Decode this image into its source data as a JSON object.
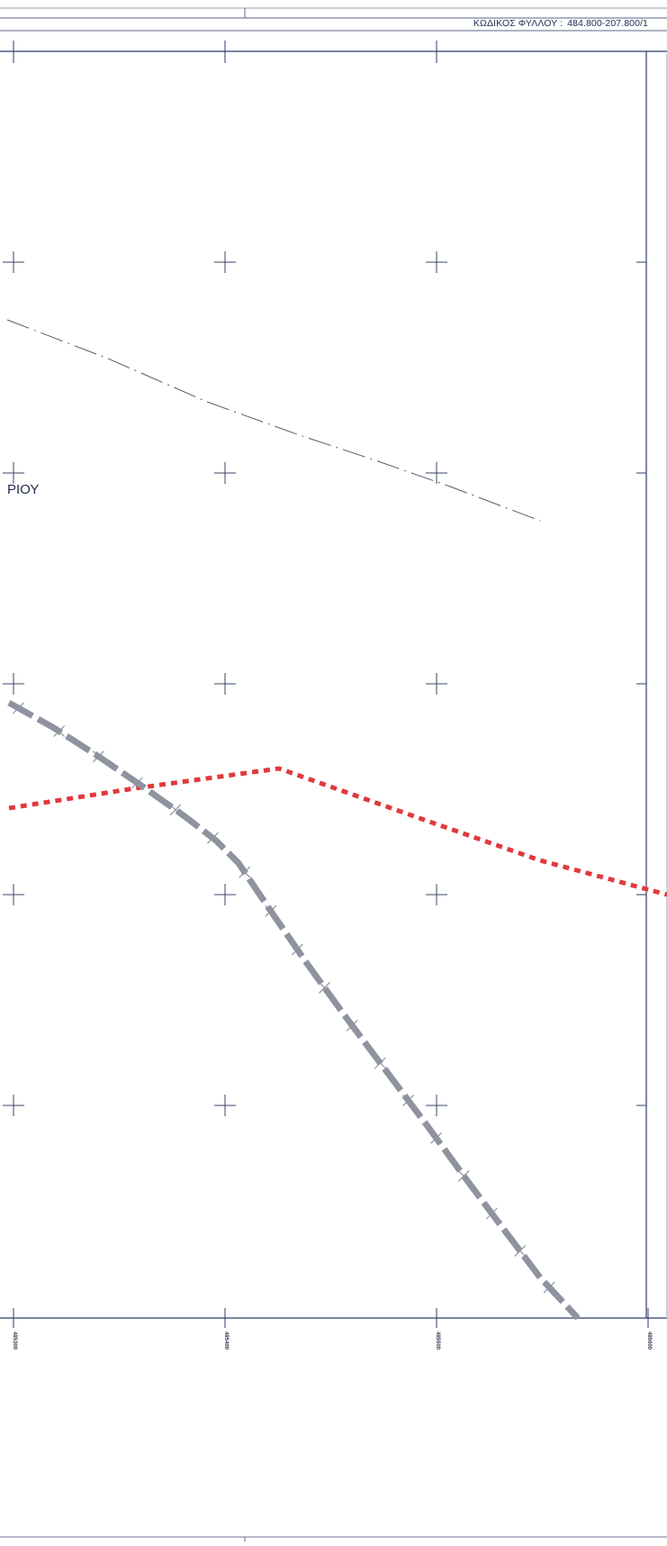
{
  "sheet": {
    "code_label": "ΚΩΔΙΚΟΣ ΦΥΛΛΟΥ :",
    "code_value": "484.800-207.800/1"
  },
  "labels": {
    "place_fragment": "ΡΙΟΥ"
  },
  "grid": {
    "x_labels": [
      "485300",
      "485400",
      "485500",
      "485600"
    ]
  },
  "colors": {
    "frame": "#2c3a6b",
    "grid_cross": "#3a4566",
    "boundary_red": "#e0393e",
    "route_gray": "#8e939f",
    "dash_dot_line": "#555a66"
  },
  "legend_features": {
    "red_dotted_line": "boundary",
    "gray_dashed_line_with_ticks": "route",
    "dash_dot_line": "line"
  }
}
